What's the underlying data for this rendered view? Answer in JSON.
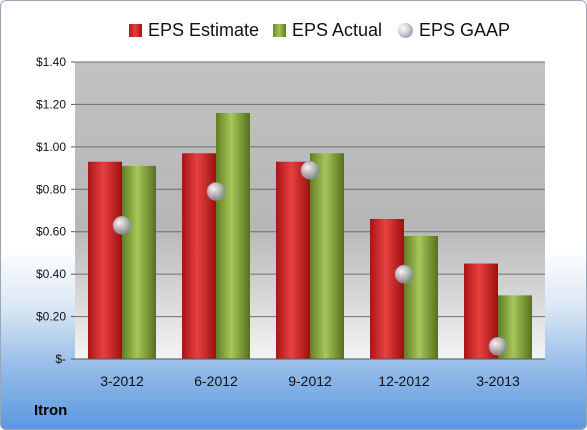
{
  "chart_data": {
    "type": "bar",
    "categories": [
      "3-2012",
      "6-2012",
      "9-2012",
      "12-2012",
      "3-2013"
    ],
    "series": [
      {
        "name": "EPS Estimate",
        "kind": "bar",
        "color": "#d42a2a",
        "values": [
          0.93,
          0.97,
          0.93,
          0.66,
          0.45
        ]
      },
      {
        "name": "EPS Actual",
        "kind": "bar",
        "color": "#8fb044",
        "values": [
          0.91,
          1.16,
          0.97,
          0.58,
          0.3
        ]
      },
      {
        "name": "EPS GAAP",
        "kind": "marker",
        "color": "#b9bec8",
        "values": [
          0.63,
          0.79,
          0.89,
          0.4,
          0.06
        ]
      }
    ],
    "ylim": [
      0,
      1.4
    ],
    "yticks": [
      0,
      0.2,
      0.4,
      0.6,
      0.8,
      1.0,
      1.2,
      1.4
    ],
    "ytick_labels": [
      "$-",
      "$0.20",
      "$0.40",
      "$0.60",
      "$0.80",
      "$1.00",
      "$1.20",
      "$1.40"
    ],
    "grid": true,
    "legend_position": "top",
    "plot_background": "#c8c8c8"
  },
  "brand": {
    "label": "Itron"
  }
}
